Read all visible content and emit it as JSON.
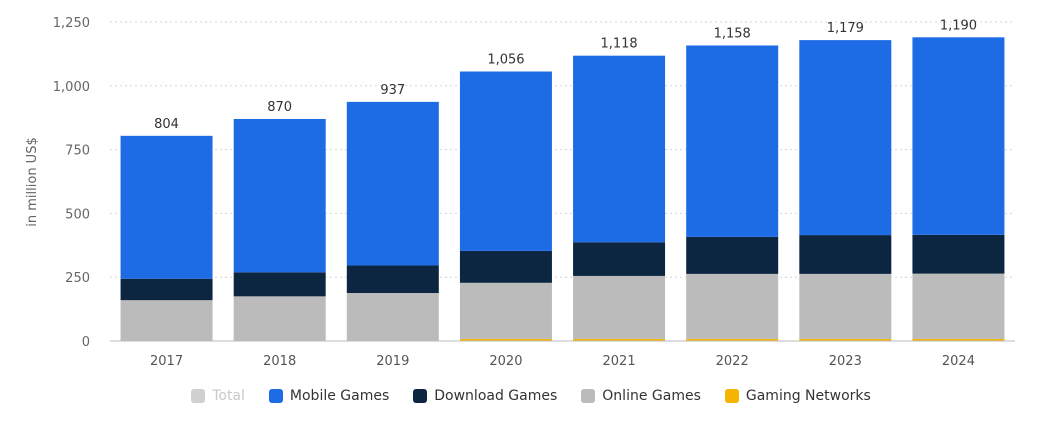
{
  "chart_data": {
    "type": "bar",
    "stacked": true,
    "categories": [
      "2017",
      "2018",
      "2019",
      "2020",
      "2021",
      "2022",
      "2023",
      "2024"
    ],
    "series": [
      {
        "name": "Gaming Networks",
        "color": "#f5b400",
        "values": [
          0,
          0,
          0,
          8,
          8,
          8,
          8,
          8
        ]
      },
      {
        "name": "Online Games",
        "color": "#bbbbbb",
        "values": [
          160,
          175,
          188,
          220,
          247,
          255,
          255,
          256
        ]
      },
      {
        "name": "Download Games",
        "color": "#0c2641",
        "values": [
          84,
          94,
          108,
          125,
          132,
          145,
          152,
          152
        ]
      },
      {
        "name": "Mobile Games",
        "color": "#1e6be6",
        "values": [
          560,
          601,
          641,
          703,
          731,
          750,
          764,
          774
        ]
      }
    ],
    "totals": [
      "804",
      "870",
      "937",
      "1,056",
      "1,118",
      "1,158",
      "1,179",
      "1,190"
    ],
    "total_values": [
      804,
      870,
      937,
      1056,
      1118,
      1158,
      1179,
      1190
    ],
    "ylabel": "in million US$",
    "ylim": [
      0,
      1250
    ],
    "yticks": [
      0,
      250,
      500,
      750,
      1000,
      1250
    ],
    "ytick_labels": [
      "0",
      "250",
      "500",
      "750",
      "1,000",
      "1,250"
    ],
    "grid": true,
    "legend_position": "bottom",
    "legend": [
      {
        "label": "Total",
        "color": "#d0d0d0",
        "muted": true
      },
      {
        "label": "Mobile Games",
        "color": "#1e6be6",
        "muted": false
      },
      {
        "label": "Download Games",
        "color": "#0c2641",
        "muted": false
      },
      {
        "label": "Online Games",
        "color": "#bbbbbb",
        "muted": false
      },
      {
        "label": "Gaming Networks",
        "color": "#f5b400",
        "muted": false
      }
    ]
  }
}
